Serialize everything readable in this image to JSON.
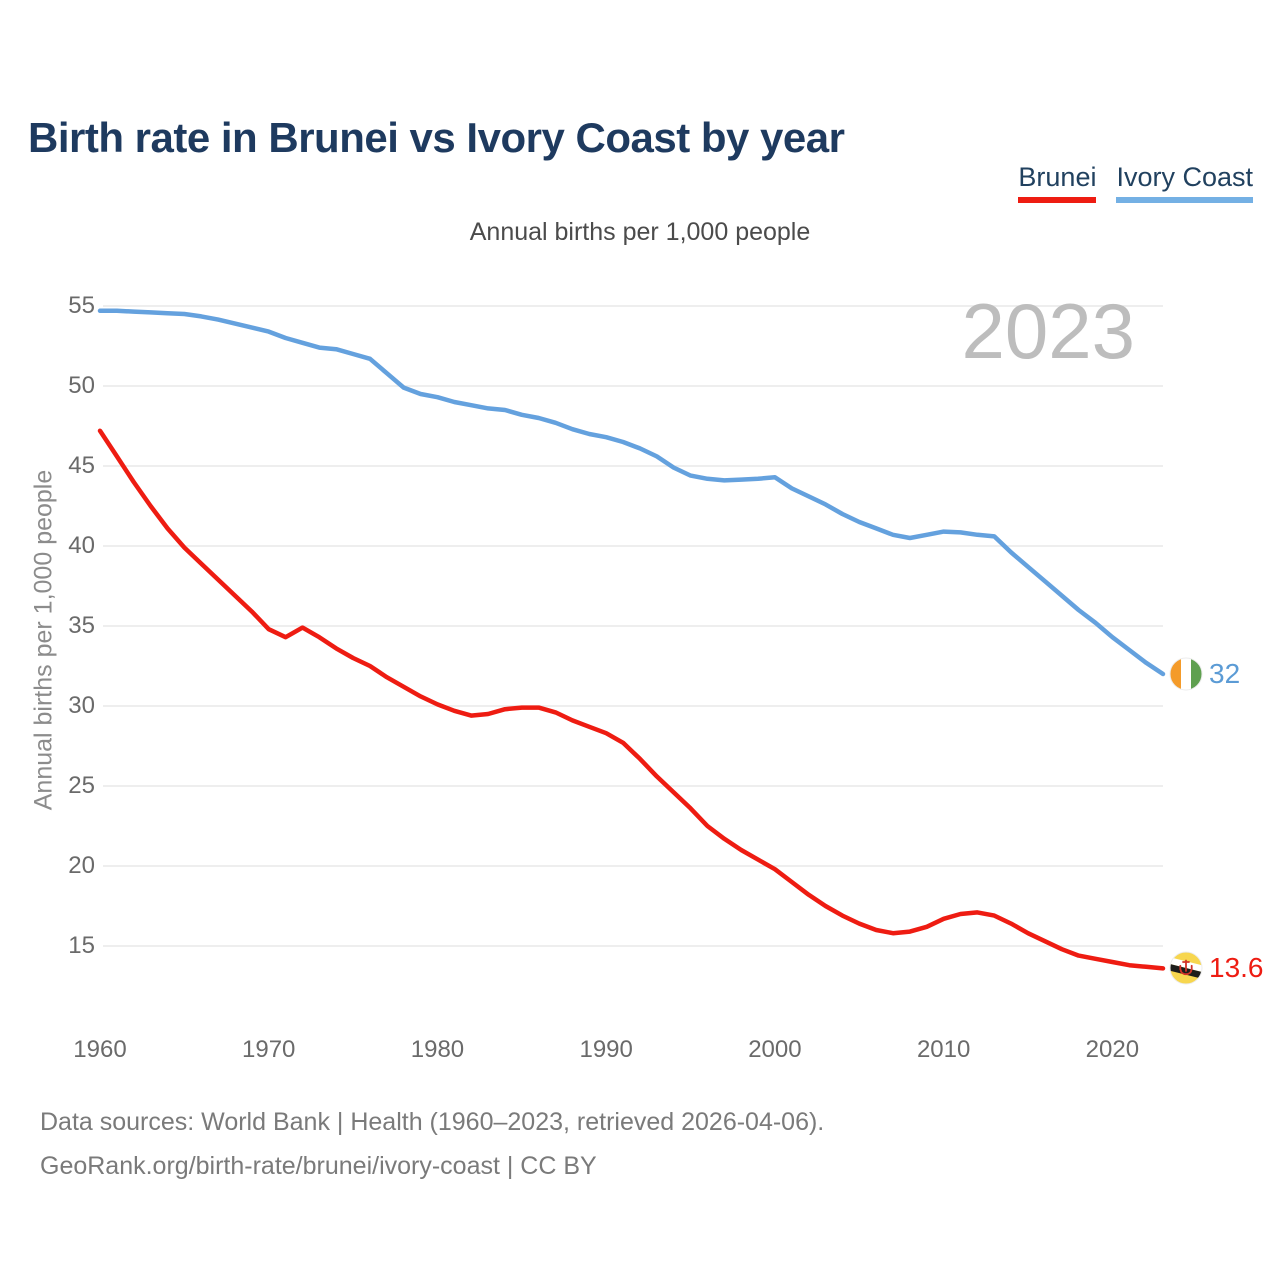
{
  "header": {
    "title": "Birth rate in Brunei vs Ivory Coast by year",
    "subtitle": "Annual births per 1,000 people"
  },
  "legend": {
    "items": [
      {
        "label": "Brunei",
        "color": "#ee1c12"
      },
      {
        "label": "Ivory Coast",
        "color": "#74b0e4"
      }
    ]
  },
  "chart_data": {
    "type": "line",
    "title": "Birth rate in Brunei vs Ivory Coast by year",
    "subtitle": "Annual births per 1,000 people",
    "ylabel": "Annual births per 1,000 people",
    "watermark": "2023",
    "grid": "horizontal",
    "legend_position": "top-right",
    "xlim": [
      1960,
      2023
    ],
    "ylim": [
      15,
      55
    ],
    "yticks": [
      55,
      50,
      45,
      40,
      35,
      30,
      25,
      20,
      15
    ],
    "xticks": [
      1960,
      1970,
      1980,
      1990,
      2000,
      2010,
      2020
    ],
    "x": [
      1960,
      1961,
      1962,
      1963,
      1964,
      1965,
      1966,
      1967,
      1968,
      1969,
      1970,
      1971,
      1972,
      1973,
      1974,
      1975,
      1976,
      1977,
      1978,
      1979,
      1980,
      1981,
      1982,
      1983,
      1984,
      1985,
      1986,
      1987,
      1988,
      1989,
      1990,
      1991,
      1992,
      1993,
      1994,
      1995,
      1996,
      1997,
      1998,
      1999,
      2000,
      2001,
      2002,
      2003,
      2004,
      2005,
      2006,
      2007,
      2008,
      2009,
      2010,
      2011,
      2012,
      2013,
      2014,
      2015,
      2016,
      2017,
      2018,
      2019,
      2020,
      2021,
      2022,
      2023
    ],
    "series": [
      {
        "name": "Brunei",
        "color": "#ee1c12",
        "label_color": "#ee1c12",
        "end_label": "13.6",
        "flag": "brunei",
        "values": [
          47.2,
          45.6,
          44.0,
          42.5,
          41.1,
          39.9,
          38.9,
          37.9,
          36.9,
          35.9,
          34.8,
          34.3,
          34.9,
          34.3,
          33.6,
          33.0,
          32.5,
          31.8,
          31.2,
          30.6,
          30.1,
          29.7,
          29.4,
          29.5,
          29.8,
          29.9,
          29.9,
          29.6,
          29.1,
          28.7,
          28.3,
          27.7,
          26.7,
          25.6,
          24.6,
          23.6,
          22.5,
          21.7,
          21.0,
          20.4,
          19.8,
          19.0,
          18.2,
          17.5,
          16.9,
          16.4,
          16.0,
          15.8,
          15.9,
          16.2,
          16.7,
          17.0,
          17.1,
          16.9,
          16.4,
          15.8,
          15.3,
          14.8,
          14.4,
          14.2,
          14.0,
          13.8,
          13.7,
          13.6
        ]
      },
      {
        "name": "Ivory Coast",
        "color": "#64a1de",
        "label_color": "#5b9bd5",
        "end_label": "32",
        "flag": "ivory-coast",
        "values": [
          54.7,
          54.7,
          54.65,
          54.6,
          54.55,
          54.5,
          54.35,
          54.15,
          53.9,
          53.65,
          53.4,
          53.0,
          52.7,
          52.4,
          52.3,
          52.0,
          51.7,
          50.8,
          49.9,
          49.5,
          49.3,
          49.0,
          48.8,
          48.6,
          48.5,
          48.2,
          48.0,
          47.7,
          47.3,
          47.0,
          46.8,
          46.5,
          46.1,
          45.6,
          44.9,
          44.4,
          44.2,
          44.1,
          44.15,
          44.2,
          44.3,
          43.6,
          43.1,
          42.6,
          42.0,
          41.5,
          41.1,
          40.7,
          40.5,
          40.7,
          40.9,
          40.85,
          40.7,
          40.6,
          39.6,
          38.7,
          37.8,
          36.9,
          36.0,
          35.2,
          34.3,
          33.5,
          32.7,
          32.0
        ]
      }
    ]
  },
  "flag_colors": {
    "ivory_coast": {
      "orange": "#f49b2a",
      "white": "#ffffff",
      "green": "#5fa050"
    },
    "brunei": {
      "yellow": "#f7d64e",
      "white": "#ffffff",
      "black": "#1d1d1b",
      "red": "#d13328"
    }
  },
  "footer": {
    "line1": "Data sources: World Bank | Health (1960–2023, retrieved 2026-04-06).",
    "line2": "GeoRank.org/birth-rate/brunei/ivory-coast | CC BY"
  }
}
